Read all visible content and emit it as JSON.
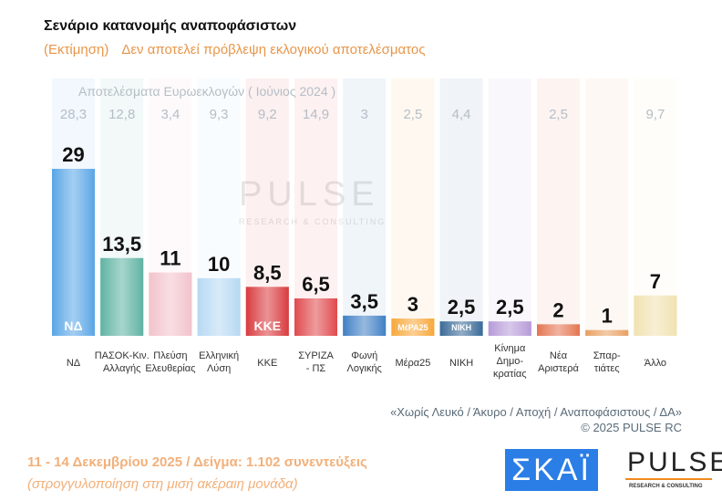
{
  "title": "Σενάριο κατανομής αναποφάσιστων",
  "subtitle_left": "(Εκτίμηση)",
  "subtitle_right": "Δεν αποτελεί πρόβλεψη εκλογικού αποτελέσματος",
  "chart_data": {
    "type": "bar",
    "categories": [
      "ΝΔ",
      "ΠΑΣΟΚ-Κιν. Αλλαγής",
      "Πλεύση Ελευθερίας",
      "Ελληνική Λύση",
      "ΚΚΕ",
      "ΣΥΡΙΖΑ - ΠΣ",
      "Φωνή Λογικής",
      "Μέρα25",
      "ΝΙΚΗ",
      "Κίνημα Δημο-κρατίας",
      "Νέα Αριστερά",
      "Σπαρ-τιάτες",
      "Άλλο"
    ],
    "value_labels": [
      "29",
      "13,5",
      "11",
      "10",
      "8,5",
      "6,5",
      "3,5",
      "3",
      "2,5",
      "2,5",
      "2",
      "1",
      "7"
    ],
    "values": [
      29,
      13.5,
      11,
      10,
      8.5,
      6.5,
      3.5,
      3,
      2.5,
      2.5,
      2,
      1,
      7
    ],
    "reference_title": "Αποτελέσματα Ευρωεκλογών  ( Ιούνιος 2024 )",
    "reference_values": [
      "28,3",
      "12,8",
      "3,4",
      "9,3",
      "9,2",
      "14,9",
      "3",
      "2,5",
      "4,4",
      "",
      "2,5",
      "",
      "9,7"
    ],
    "colors": [
      "#5aa6e6",
      "#5fb3a3",
      "#f3c2cc",
      "#b7d8f3",
      "#d93a3e",
      "#e0484c",
      "#3f7fc4",
      "#f7a83a",
      "#3a6a98",
      "#b79ad8",
      "#e47550",
      "#e8a060",
      "#f1e1b0"
    ],
    "logos": [
      "ΝΔ",
      "",
      "",
      "",
      "ΚΚΕ",
      "",
      "",
      "ΜέΡΑ25",
      "ΝΙΚΗ",
      "",
      "",
      "",
      ""
    ],
    "ylim": [
      0,
      30
    ],
    "grid": false
  },
  "watermark": "PULSE",
  "watermark_sub": "RESEARCH & CONSULTING",
  "footnote": "«Χωρίς Λευκό / Άκυρο / Αποχή / Αναποφάσιστους / ΔΑ»",
  "copyright": "© 2025 PULSE RC",
  "date_sample": "11 - 14 Δεκεμβρίου 2025  /  Δείγμα:  1.102 συνεντεύξεις",
  "rounding": "(στρογγυλοποίηση στη μισή ακέραιη μονάδα)",
  "logo_skai": "ΣΚΑΪ",
  "logo_pulse": "PULSE",
  "logo_pulse_sub": "RESEARCH & CONSULTING"
}
